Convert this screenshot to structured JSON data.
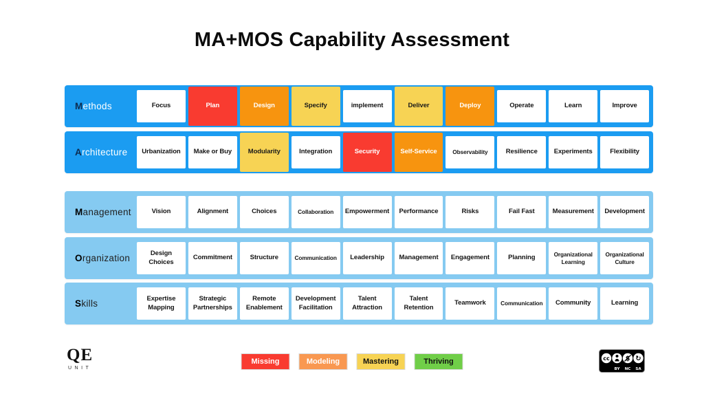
{
  "title": "MA+MOS Capability Assessment",
  "status_colors": {
    "none": {
      "bg": "#FFFFFF",
      "fg": "#141414"
    },
    "missing": {
      "bg": "#F93B30",
      "fg": "#FFFFFF"
    },
    "modeling": {
      "bg": "#F7940F",
      "fg": "#FFFFFF"
    },
    "mastering": {
      "bg": "#F7D354",
      "fg": "#1A1A1A"
    }
  },
  "row_groups": {
    "bright": {
      "bg": "#1B9CF1",
      "label_first": "#0D2B4F",
      "label_rest": "#FFFFFF"
    },
    "light": {
      "bg": "#85CAF1",
      "label_first": "#000000",
      "label_rest": "#1F1F1F"
    }
  },
  "rows": [
    {
      "label": "Methods",
      "group": "bright",
      "cells": [
        {
          "text": "Focus",
          "status": "none"
        },
        {
          "text": "Plan",
          "status": "missing"
        },
        {
          "text": "Design",
          "status": "modeling"
        },
        {
          "text": "Specify",
          "status": "mastering"
        },
        {
          "text": "implement",
          "status": "none"
        },
        {
          "text": "Deliver",
          "status": "mastering"
        },
        {
          "text": "Deploy",
          "status": "modeling"
        },
        {
          "text": "Operate",
          "status": "none"
        },
        {
          "text": "Learn",
          "status": "none"
        },
        {
          "text": "Improve",
          "status": "none"
        }
      ]
    },
    {
      "label": "Architecture",
      "group": "bright",
      "cells": [
        {
          "text": "Urbanization",
          "status": "none"
        },
        {
          "text": "Make or Buy",
          "status": "none"
        },
        {
          "text": "Modularity",
          "status": "mastering"
        },
        {
          "text": "Integration",
          "status": "none"
        },
        {
          "text": "Security",
          "status": "missing"
        },
        {
          "text": "Self-Service",
          "status": "modeling"
        },
        {
          "text": "Observability",
          "status": "none"
        },
        {
          "text": "Resilience",
          "status": "none"
        },
        {
          "text": "Experiments",
          "status": "none"
        },
        {
          "text": "Flexibility",
          "status": "none"
        }
      ]
    },
    {
      "label": "Management",
      "group": "light",
      "cells": [
        {
          "text": "Vision",
          "status": "none"
        },
        {
          "text": "Alignment",
          "status": "none"
        },
        {
          "text": "Choices",
          "status": "none"
        },
        {
          "text": "Collaboration",
          "status": "none"
        },
        {
          "text": "Empowerment",
          "status": "none"
        },
        {
          "text": "Performance",
          "status": "none"
        },
        {
          "text": "Risks",
          "status": "none"
        },
        {
          "text": "Fail Fast",
          "status": "none"
        },
        {
          "text": "Measurement",
          "status": "none"
        },
        {
          "text": "Development",
          "status": "none"
        }
      ]
    },
    {
      "label": "Organization",
      "group": "light",
      "cells": [
        {
          "text": "Design Choices",
          "status": "none"
        },
        {
          "text": "Commitment",
          "status": "none"
        },
        {
          "text": "Structure",
          "status": "none"
        },
        {
          "text": "Communication",
          "status": "none"
        },
        {
          "text": "Leadership",
          "status": "none"
        },
        {
          "text": "Management",
          "status": "none"
        },
        {
          "text": "Engagement",
          "status": "none"
        },
        {
          "text": "Planning",
          "status": "none"
        },
        {
          "text": "Organizational Learning",
          "status": "none"
        },
        {
          "text": "Organizational Culture",
          "status": "none"
        }
      ]
    },
    {
      "label": "Skills",
      "group": "light",
      "cells": [
        {
          "text": "Expertise Mapping",
          "status": "none"
        },
        {
          "text": "Strategic Partnerships",
          "status": "none"
        },
        {
          "text": "Remote Enablement",
          "status": "none"
        },
        {
          "text": "Development Facilitation",
          "status": "none"
        },
        {
          "text": "Talent Attraction",
          "status": "none"
        },
        {
          "text": "Talent Retention",
          "status": "none"
        },
        {
          "text": "Teamwork",
          "status": "none"
        },
        {
          "text": "Communication",
          "status": "none"
        },
        {
          "text": "Community",
          "status": "none"
        },
        {
          "text": "Learning",
          "status": "none"
        }
      ]
    }
  ],
  "legend": {
    "items": [
      {
        "label": "Missing",
        "bg": "#F93B30",
        "fg": "#FFFFFF"
      },
      {
        "label": "Modeling",
        "bg": "#F99851",
        "fg": "#FFFFFF"
      },
      {
        "label": "Mastering",
        "bg": "#F7D354",
        "fg": "#111111"
      },
      {
        "label": "Thriving",
        "bg": "#70CE48",
        "fg": "#111111"
      }
    ]
  },
  "footer": {
    "logo": {
      "main": "QE",
      "sub": "UNIT"
    },
    "license": {
      "labels": [
        "BY",
        "NC",
        "SA"
      ]
    }
  }
}
